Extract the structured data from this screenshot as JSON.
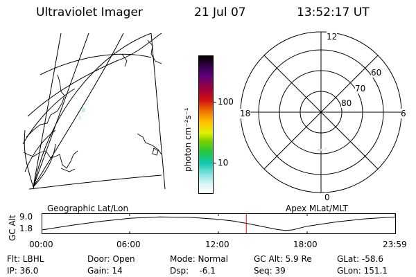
{
  "header": {
    "instrument": "Ultraviolet Imager",
    "date": "21 Jul 07",
    "time": "13:52:17 UT"
  },
  "left_panel": {
    "caption": "Geographic Lat/Lon"
  },
  "colorbar": {
    "label": "photon cm⁻²s⁻¹",
    "ticks": [
      "100",
      "10"
    ],
    "scale": "log",
    "colors": [
      "#000000",
      "#2a0038",
      "#5a0070",
      "#8a0030",
      "#d01010",
      "#f08000",
      "#ffd000",
      "#c8f000",
      "#20d020",
      "#10c8b0",
      "#90e8e0",
      "#ffffff"
    ]
  },
  "right_panel": {
    "caption": "Apex MLat/MLT",
    "mlt_labels": [
      "12",
      "18",
      "6",
      "0"
    ],
    "mlat_labels": [
      "60",
      "70",
      "80"
    ]
  },
  "timeline": {
    "ylabel": "GC Alt",
    "y_ticks": [
      "9.0",
      "1.8"
    ],
    "x_ticks": [
      "00:00",
      "06:00",
      "12:00",
      "18:00",
      "23:59"
    ],
    "marker_color": "#ff0000",
    "marker_time": "13:52:17",
    "orbit_altitude": {
      "x_hours": [
        0,
        2,
        4,
        6,
        8,
        10,
        12,
        13,
        14,
        15,
        16,
        16.5,
        17,
        18,
        20,
        22,
        24
      ],
      "y_re": [
        1.8,
        4.3,
        6.5,
        8.2,
        8.9,
        8.7,
        7.6,
        6.6,
        5.2,
        3.6,
        2.0,
        1.5,
        1.8,
        3.8,
        6.2,
        7.9,
        8.9
      ]
    }
  },
  "info": {
    "filter": "Flt: LBHL",
    "ip": "IP: 36.0",
    "door": "Door: Open",
    "gain": "Gain: 14",
    "mode": "Mode: Normal",
    "dsp": "Dsp:    -6.1",
    "gc_alt": "GC Alt: 5.9 Re",
    "seq": "Seq: 39",
    "glat": "GLat: -58.6",
    "glon": "GLon: 151.1"
  }
}
